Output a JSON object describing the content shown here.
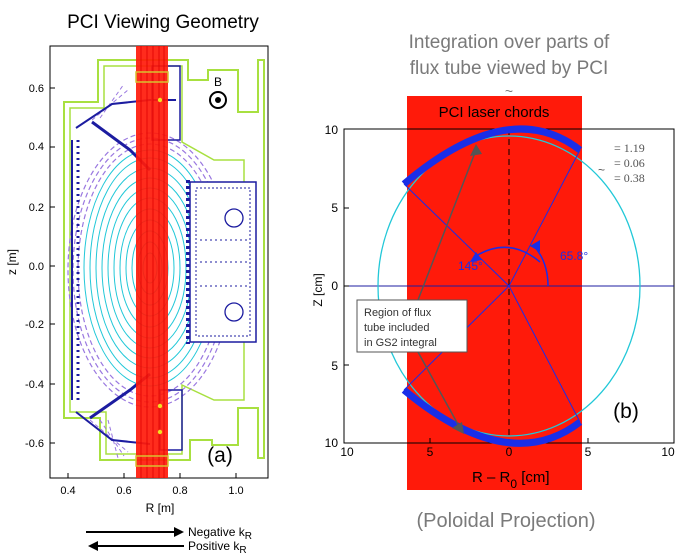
{
  "panel_a": {
    "title": "PCI Viewing Geometry",
    "b_label": "B",
    "panel_label": "(a)",
    "xlabel": "R [m]",
    "ylabel": "z [m]",
    "x_ticks": [
      "0.4",
      "0.6",
      "0.8",
      "1.0"
    ],
    "y_ticks": [
      "0.6",
      "0.4",
      "0.2",
      "0.0",
      "-0.2",
      "-0.4",
      "-0.6"
    ],
    "arrows": {
      "negative_prefix": "Negative k",
      "positive_prefix": "Positive k",
      "subscript": "R"
    }
  },
  "panel_b": {
    "title_line1": "Integration over parts of",
    "title_line2": "flux tube viewed by PCI",
    "laser_label": "PCI laser chords",
    "panel_label": "(b)",
    "xlabel_main": "R – R",
    "xlabel_sub": "0",
    "xlabel_unit": " [cm]",
    "ylabel": "Z [cm]",
    "y_ticks": [
      "10",
      "5",
      "0",
      "5",
      "10"
    ],
    "x_ticks": [
      "10",
      "5",
      "0",
      "5",
      "10"
    ],
    "angle_left": "145°",
    "angle_right": "65.8°",
    "legend": [
      "= 1.19",
      "= 0.06",
      "= 0.38"
    ],
    "tilde": "~",
    "region_box": [
      "Region of flux",
      "tube included",
      "in GS2 integral"
    ],
    "caption": "(Poloidal Projection)"
  },
  "colors": {
    "laser_red": "#ff1a0a",
    "flux_cyan": "#22c8d8",
    "flux_purple": "#9a78e0",
    "wall_green": "#a8e040",
    "tile_blue": "#1c1ca0",
    "arc_blue": "#1a2ee8",
    "gray_text": "#7a7a7a"
  }
}
